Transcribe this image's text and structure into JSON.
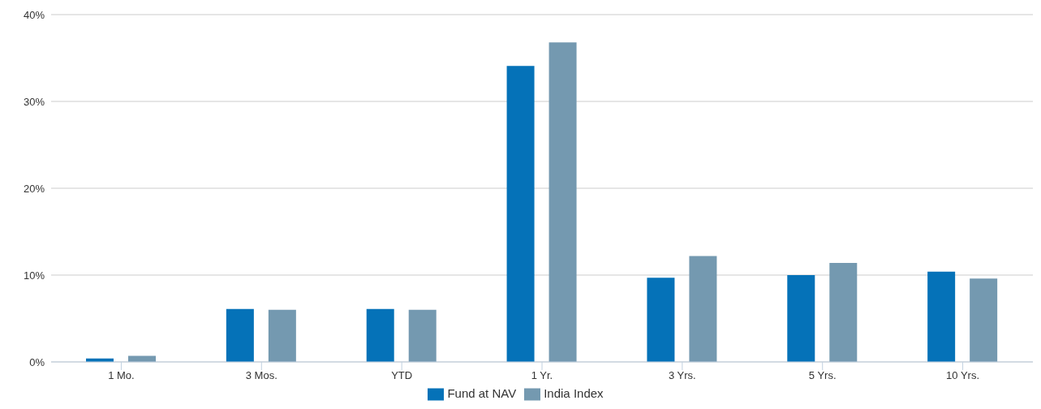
{
  "chart_data": {
    "type": "bar",
    "categories": [
      "1 Mo.",
      "3 Mos.",
      "YTD",
      "1 Yr.",
      "3 Yrs.",
      "5 Yrs.",
      "10 Yrs."
    ],
    "series": [
      {
        "name": "Fund at NAV",
        "color": "#0572b8",
        "values": [
          0.4,
          6.1,
          6.1,
          34.1,
          9.7,
          10.0,
          10.4
        ]
      },
      {
        "name": "India Index",
        "color": "#7499b0",
        "values": [
          0.7,
          6.0,
          6.0,
          36.8,
          12.2,
          11.4,
          9.6
        ]
      }
    ],
    "ylim": [
      0,
      40
    ],
    "yticks": [
      {
        "value": 0,
        "label": "0%"
      },
      {
        "value": 10,
        "label": "10%"
      },
      {
        "value": 20,
        "label": "20%"
      },
      {
        "value": 30,
        "label": "30%"
      },
      {
        "value": 40,
        "label": "40%"
      }
    ],
    "grid": "y",
    "legend": "bottom"
  }
}
